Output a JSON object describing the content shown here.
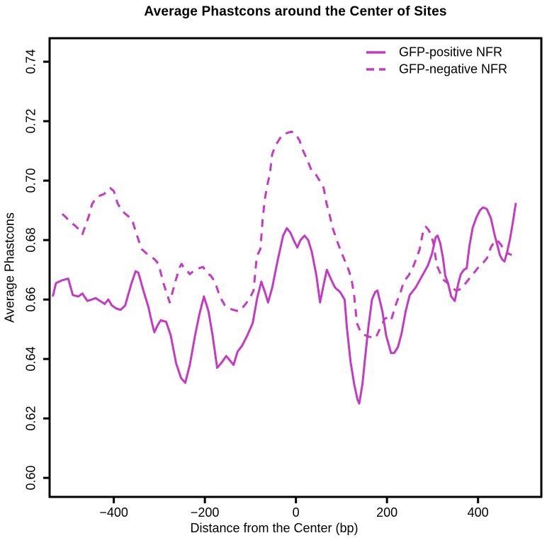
{
  "page": {
    "background": "#ffffff"
  },
  "chart_data": {
    "type": "line",
    "title": "Average Phastcons around the Center of Sites",
    "xlabel": "Distance from the Center (bp)",
    "ylabel": "Average Phastcons",
    "xlim": [
      -541,
      539
    ],
    "ylim": [
      0.5936,
      0.7479
    ],
    "grid": false,
    "legend_position": "top-right",
    "line_color": "#C23BC2",
    "axis_color": "#000000",
    "x_ticks": [
      {
        "value": -400,
        "label": "−400"
      },
      {
        "value": -200,
        "label": "−200"
      },
      {
        "value": 0,
        "label": "0"
      },
      {
        "value": 200,
        "label": "200"
      },
      {
        "value": 400,
        "label": "400"
      }
    ],
    "y_ticks": [
      {
        "value": 0.6,
        "label": "0.60"
      },
      {
        "value": 0.62,
        "label": "0.62"
      },
      {
        "value": 0.64,
        "label": "0.64"
      },
      {
        "value": 0.66,
        "label": "0.66"
      },
      {
        "value": 0.68,
        "label": "0.68"
      },
      {
        "value": 0.7,
        "label": "0.70"
      },
      {
        "value": 0.72,
        "label": "0.72"
      },
      {
        "value": 0.74,
        "label": "0.74"
      }
    ],
    "series": [
      {
        "name": "GFP-positive NFR",
        "style": "solid",
        "points": [
          [
            -534,
            0.661
          ],
          [
            -527,
            0.6655
          ],
          [
            -513,
            0.6665
          ],
          [
            -500,
            0.667
          ],
          [
            -490,
            0.6615
          ],
          [
            -478,
            0.661
          ],
          [
            -469,
            0.662
          ],
          [
            -458,
            0.6595
          ],
          [
            -448,
            0.66
          ],
          [
            -440,
            0.6605
          ],
          [
            -430,
            0.6595
          ],
          [
            -420,
            0.6585
          ],
          [
            -412,
            0.66
          ],
          [
            -404,
            0.658
          ],
          [
            -395,
            0.657
          ],
          [
            -385,
            0.6565
          ],
          [
            -375,
            0.658
          ],
          [
            -362,
            0.665
          ],
          [
            -352,
            0.6695
          ],
          [
            -346,
            0.669
          ],
          [
            -335,
            0.663
          ],
          [
            -324,
            0.6575
          ],
          [
            -316,
            0.652
          ],
          [
            -311,
            0.649
          ],
          [
            -303,
            0.6515
          ],
          [
            -297,
            0.653
          ],
          [
            -285,
            0.6525
          ],
          [
            -275,
            0.648
          ],
          [
            -263,
            0.6385
          ],
          [
            -252,
            0.6335
          ],
          [
            -243,
            0.632
          ],
          [
            -233,
            0.638
          ],
          [
            -222,
            0.6475
          ],
          [
            -212,
            0.655
          ],
          [
            -202,
            0.661
          ],
          [
            -192,
            0.656
          ],
          [
            -183,
            0.648
          ],
          [
            -173,
            0.637
          ],
          [
            -162,
            0.639
          ],
          [
            -153,
            0.641
          ],
          [
            -145,
            0.6395
          ],
          [
            -137,
            0.638
          ],
          [
            -128,
            0.6425
          ],
          [
            -118,
            0.6445
          ],
          [
            -108,
            0.6475
          ],
          [
            -95,
            0.652
          ],
          [
            -85,
            0.6605
          ],
          [
            -76,
            0.666
          ],
          [
            -68,
            0.6625
          ],
          [
            -61,
            0.659
          ],
          [
            -52,
            0.664
          ],
          [
            -41,
            0.6725
          ],
          [
            -28,
            0.6815
          ],
          [
            -20,
            0.684
          ],
          [
            -12,
            0.6825
          ],
          [
            -5,
            0.68
          ],
          [
            3,
            0.6775
          ],
          [
            10,
            0.68
          ],
          [
            19,
            0.6815
          ],
          [
            27,
            0.68
          ],
          [
            35,
            0.676
          ],
          [
            45,
            0.668
          ],
          [
            53,
            0.659
          ],
          [
            61,
            0.665
          ],
          [
            68,
            0.67
          ],
          [
            78,
            0.6665
          ],
          [
            86,
            0.664
          ],
          [
            97,
            0.6625
          ],
          [
            107,
            0.66
          ],
          [
            112,
            0.6505
          ],
          [
            120,
            0.639
          ],
          [
            128,
            0.6315
          ],
          [
            135,
            0.6265
          ],
          [
            139,
            0.625
          ],
          [
            146,
            0.6315
          ],
          [
            151,
            0.639
          ],
          [
            159,
            0.6505
          ],
          [
            167,
            0.66
          ],
          [
            174,
            0.6625
          ],
          [
            179,
            0.663
          ],
          [
            190,
            0.656
          ],
          [
            198,
            0.648
          ],
          [
            209,
            0.642
          ],
          [
            216,
            0.642
          ],
          [
            224,
            0.644
          ],
          [
            232,
            0.6485
          ],
          [
            241,
            0.656
          ],
          [
            250,
            0.6615
          ],
          [
            263,
            0.664
          ],
          [
            272,
            0.6665
          ],
          [
            281,
            0.669
          ],
          [
            290,
            0.6715
          ],
          [
            299,
            0.6755
          ],
          [
            307,
            0.681
          ],
          [
            311,
            0.6815
          ],
          [
            317,
            0.679
          ],
          [
            323,
            0.674
          ],
          [
            328,
            0.668
          ],
          [
            334,
            0.6655
          ],
          [
            341,
            0.661
          ],
          [
            349,
            0.6595
          ],
          [
            356,
            0.665
          ],
          [
            362,
            0.6685
          ],
          [
            369,
            0.67
          ],
          [
            375,
            0.6705
          ],
          [
            381,
            0.678
          ],
          [
            388,
            0.684
          ],
          [
            396,
            0.6875
          ],
          [
            404,
            0.69
          ],
          [
            411,
            0.691
          ],
          [
            419,
            0.6905
          ],
          [
            428,
            0.6875
          ],
          [
            436,
            0.682
          ],
          [
            443,
            0.678
          ],
          [
            448,
            0.675
          ],
          [
            453,
            0.6735
          ],
          [
            458,
            0.6728
          ],
          [
            464,
            0.676
          ],
          [
            471,
            0.681
          ],
          [
            477,
            0.6865
          ],
          [
            483,
            0.6925
          ]
        ]
      },
      {
        "name": "GFP-negative NFR",
        "style": "dashed",
        "points": [
          [
            -513,
            0.6888
          ],
          [
            -504,
            0.6875
          ],
          [
            -495,
            0.686
          ],
          [
            -486,
            0.685
          ],
          [
            -476,
            0.6835
          ],
          [
            -469,
            0.682
          ],
          [
            -462,
            0.685
          ],
          [
            -455,
            0.688
          ],
          [
            -448,
            0.692
          ],
          [
            -440,
            0.694
          ],
          [
            -430,
            0.695
          ],
          [
            -421,
            0.6955
          ],
          [
            -414,
            0.697
          ],
          [
            -408,
            0.6975
          ],
          [
            -400,
            0.6965
          ],
          [
            -392,
            0.6925
          ],
          [
            -383,
            0.69
          ],
          [
            -372,
            0.6885
          ],
          [
            -360,
            0.687
          ],
          [
            -350,
            0.682
          ],
          [
            -339,
            0.677
          ],
          [
            -328,
            0.6755
          ],
          [
            -319,
            0.6745
          ],
          [
            -310,
            0.6735
          ],
          [
            -302,
            0.672
          ],
          [
            -290,
            0.665
          ],
          [
            -277,
            0.659
          ],
          [
            -265,
            0.666
          ],
          [
            -255,
            0.671
          ],
          [
            -251,
            0.672
          ],
          [
            -244,
            0.67
          ],
          [
            -238,
            0.6695
          ],
          [
            -233,
            0.6685
          ],
          [
            -222,
            0.67
          ],
          [
            -213,
            0.6705
          ],
          [
            -204,
            0.671
          ],
          [
            -196,
            0.669
          ],
          [
            -187,
            0.668
          ],
          [
            -178,
            0.666
          ],
          [
            -167,
            0.661
          ],
          [
            -156,
            0.658
          ],
          [
            -147,
            0.657
          ],
          [
            -137,
            0.6565
          ],
          [
            -125,
            0.656
          ],
          [
            -113,
            0.658
          ],
          [
            -103,
            0.66
          ],
          [
            -93,
            0.663
          ],
          [
            -86,
            0.6745
          ],
          [
            -78,
            0.677
          ],
          [
            -73,
            0.687
          ],
          [
            -68,
            0.694
          ],
          [
            -62,
            0.699
          ],
          [
            -57,
            0.7025
          ],
          [
            -52,
            0.709
          ],
          [
            -44,
            0.712
          ],
          [
            -36,
            0.714
          ],
          [
            -29,
            0.7155
          ],
          [
            -20,
            0.716
          ],
          [
            -10,
            0.7165
          ],
          [
            -2,
            0.716
          ],
          [
            8,
            0.7135
          ],
          [
            16,
            0.71
          ],
          [
            25,
            0.707
          ],
          [
            34,
            0.7035
          ],
          [
            42,
            0.7025
          ],
          [
            52,
            0.7
          ],
          [
            61,
            0.6975
          ],
          [
            67,
            0.6925
          ],
          [
            73,
            0.689
          ],
          [
            82,
            0.6835
          ],
          [
            92,
            0.679
          ],
          [
            101,
            0.6755
          ],
          [
            109,
            0.6725
          ],
          [
            117,
            0.6695
          ],
          [
            123,
            0.666
          ],
          [
            128,
            0.6612
          ],
          [
            134,
            0.652
          ],
          [
            143,
            0.6488
          ],
          [
            152,
            0.648
          ],
          [
            160,
            0.6475
          ],
          [
            168,
            0.6472
          ],
          [
            175,
            0.647
          ],
          [
            184,
            0.65
          ],
          [
            195,
            0.6535
          ],
          [
            202,
            0.654
          ],
          [
            209,
            0.653
          ],
          [
            215,
            0.656
          ],
          [
            221,
            0.659
          ],
          [
            229,
            0.662
          ],
          [
            237,
            0.666
          ],
          [
            247,
            0.668
          ],
          [
            255,
            0.67
          ],
          [
            265,
            0.674
          ],
          [
            272,
            0.677
          ],
          [
            280,
            0.6835
          ],
          [
            285,
            0.6845
          ],
          [
            291,
            0.6835
          ],
          [
            296,
            0.682
          ],
          [
            302,
            0.679
          ],
          [
            307,
            0.674
          ],
          [
            311,
            0.671
          ],
          [
            318,
            0.6685
          ],
          [
            325,
            0.6665
          ],
          [
            333,
            0.6655
          ],
          [
            342,
            0.664
          ],
          [
            352,
            0.663
          ],
          [
            362,
            0.6635
          ],
          [
            373,
            0.6655
          ],
          [
            383,
            0.6675
          ],
          [
            394,
            0.6695
          ],
          [
            404,
            0.6715
          ],
          [
            412,
            0.6725
          ],
          [
            420,
            0.674
          ],
          [
            428,
            0.6775
          ],
          [
            436,
            0.6795
          ],
          [
            442,
            0.68
          ],
          [
            450,
            0.6785
          ],
          [
            458,
            0.6765
          ],
          [
            466,
            0.6755
          ],
          [
            474,
            0.675
          ]
        ]
      }
    ]
  }
}
